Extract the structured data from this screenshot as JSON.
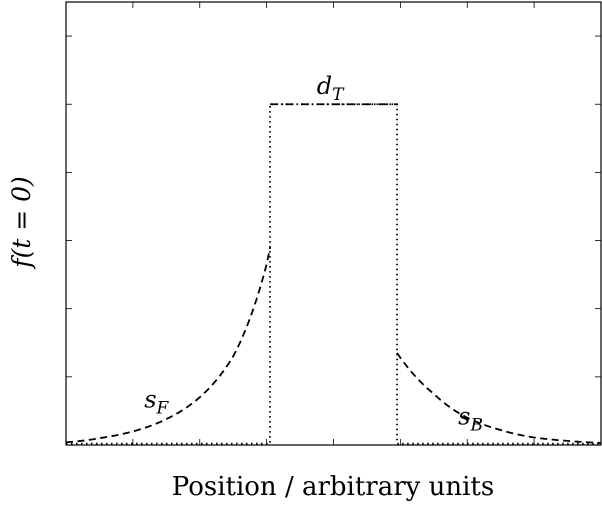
{
  "chart_data": {
    "type": "line",
    "title": "",
    "xlabel": "Position / arbitrary units",
    "ylabel": "f(t = 0)",
    "xlim": [
      0,
      8
    ],
    "ylim": [
      0,
      6.5
    ],
    "grid": false,
    "legend": "none",
    "series": [
      {
        "style": "dashed",
        "x": [
          0,
          0.5,
          1,
          1.5,
          2,
          2.5,
          3,
          3.05
        ],
        "y": [
          0.04,
          0.1,
          0.2,
          0.38,
          0.7,
          1.3,
          2.65,
          2.9
        ]
      },
      {
        "style": "dash-dot",
        "x": [
          3.05,
          4.95
        ],
        "y": [
          5,
          5
        ]
      },
      {
        "style": "dotted",
        "x": [
          0,
          3.05,
          3.05,
          4.95,
          4.95,
          8
        ],
        "y": [
          0.02,
          0.02,
          5,
          5,
          0.02,
          0.02
        ]
      },
      {
        "style": "dashed",
        "x": [
          4.95,
          5.5,
          6,
          6.5,
          7,
          7.5,
          8
        ],
        "y": [
          1.35,
          0.75,
          0.4,
          0.22,
          0.11,
          0.06,
          0.03
        ]
      }
    ],
    "annotations": [
      {
        "base": "d",
        "sub": "T",
        "x": 3.95,
        "y": 5.15
      },
      {
        "base": "s",
        "sub": "F",
        "x": 1.35,
        "y": 0.55
      },
      {
        "base": "s",
        "sub": "B",
        "x": 6.05,
        "y": 0.3
      }
    ],
    "yticks": [
      1,
      2,
      3,
      4,
      5,
      6
    ],
    "xticks": [
      1,
      2,
      3,
      4,
      5,
      6,
      7
    ]
  }
}
